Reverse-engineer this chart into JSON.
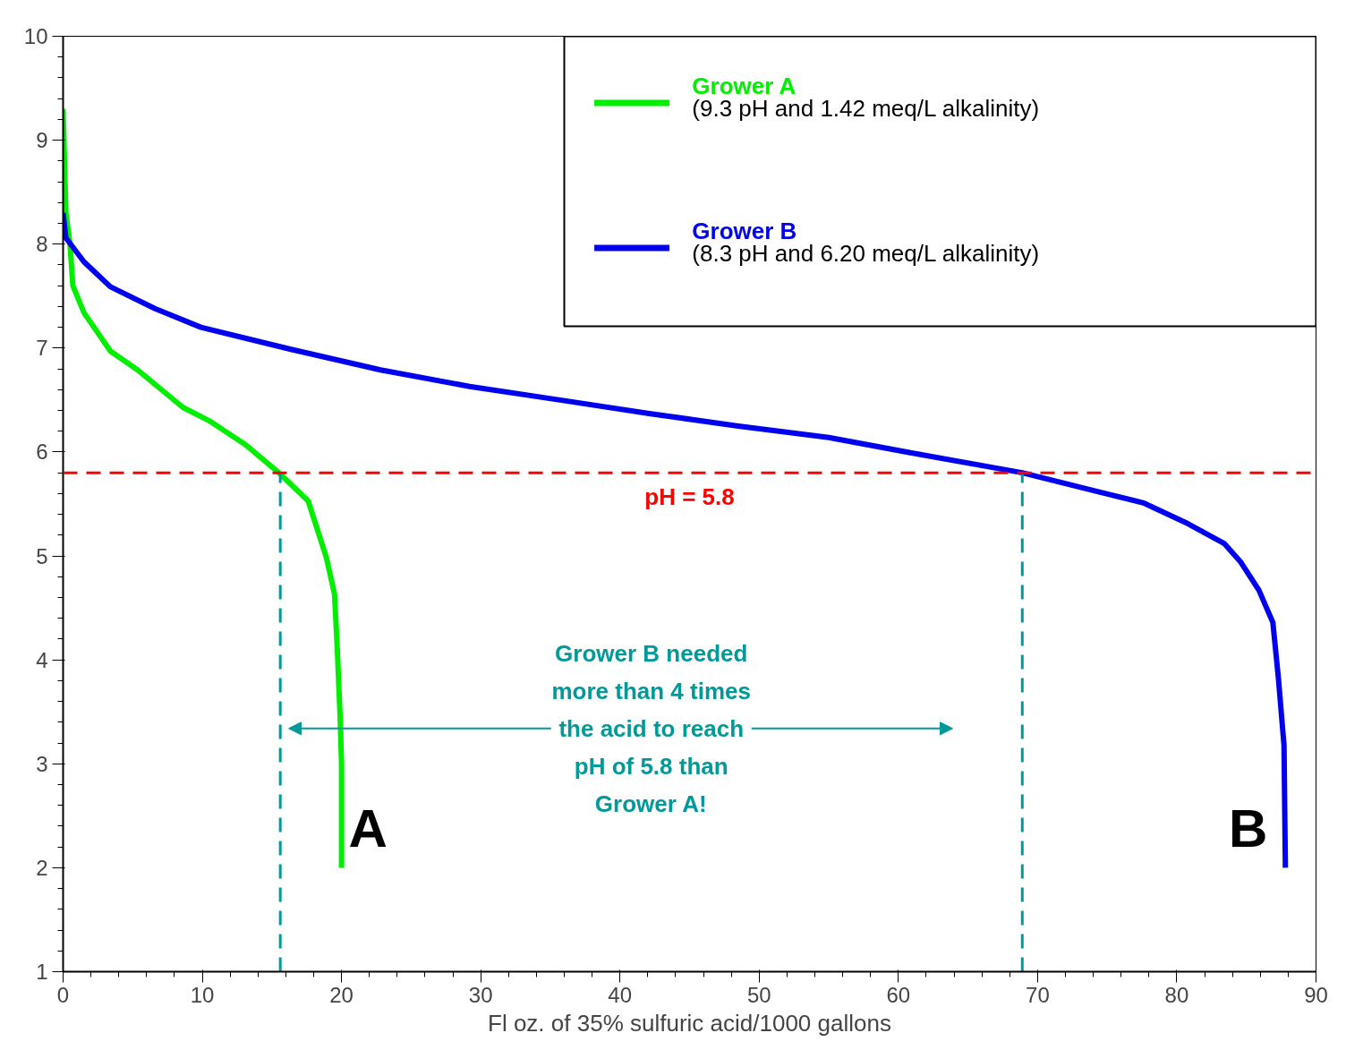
{
  "chart_data": {
    "type": "line",
    "xlabel": "Fl oz. of 35% sulfuric acid/1000 gallons",
    "xlim": [
      0,
      90
    ],
    "ylim": [
      1,
      10
    ],
    "xticks": [
      0,
      10,
      20,
      30,
      40,
      50,
      60,
      70,
      80,
      90
    ],
    "yticks": [
      1,
      2,
      3,
      4,
      5,
      6,
      7,
      8,
      9,
      10
    ],
    "grid": false,
    "legend": "top right",
    "line_style": "solid",
    "marker": "none",
    "series": [
      {
        "name": "Grower A",
        "color": "#00ee00",
        "x": [
          0,
          0.2,
          0.5,
          0.7,
          1.5,
          3.4,
          5.35,
          8.6,
          10.5,
          13.1,
          15.5,
          17.6,
          18.9,
          19.5,
          19.7,
          19.9,
          20,
          20
        ],
        "values": [
          9.3,
          8.3,
          8.0,
          7.6,
          7.34,
          6.97,
          6.79,
          6.43,
          6.3,
          6.07,
          5.8,
          5.53,
          4.99,
          4.63,
          4.09,
          3.45,
          3.0,
          2.0
        ]
      },
      {
        "name": "Grower B",
        "color": "#0000ee",
        "x": [
          0,
          0.2,
          1.5,
          3.4,
          6.6,
          9.9,
          16.3,
          22.8,
          29.2,
          35.7,
          42.1,
          48.5,
          55,
          61.4,
          68.9,
          74.3,
          77.6,
          80.8,
          83.4,
          84.6,
          85.9,
          86.9,
          87.3,
          87.7,
          87.8
        ],
        "values": [
          8.3,
          8.06,
          7.83,
          7.59,
          7.38,
          7.2,
          6.99,
          6.79,
          6.63,
          6.5,
          6.37,
          6.25,
          6.14,
          5.98,
          5.8,
          5.62,
          5.51,
          5.31,
          5.12,
          4.94,
          4.67,
          4.36,
          3.82,
          3.18,
          2.0
        ]
      }
    ],
    "ref_lines": [
      {
        "axis": "y",
        "value": 5.8,
        "label": "pH = 5.8",
        "color": "#ff0000",
        "line_style": "dashed"
      },
      {
        "axis": "x",
        "value": 15.6,
        "label": null,
        "color": "#009999",
        "line_style": "dashed"
      },
      {
        "axis": "x",
        "value": 68.9,
        "label": null,
        "color": "#009999",
        "line_style": "dashed"
      }
    ],
    "annotations": [
      "(9.3 pH and 1.42 meq/L alkalinity)",
      "(8.3 pH and 6.20 meq/L alkalinity)",
      "Grower B needed\nmore than 4 times\nthe acid to reach\npH of 5.8 than\nGrower A!",
      "A",
      "B"
    ]
  }
}
